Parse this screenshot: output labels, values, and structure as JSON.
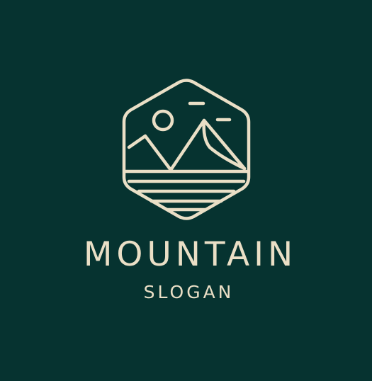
{
  "logo": {
    "title": "MOUNTAIN",
    "slogan": "SLOGAN",
    "icon": "mountain-emblem-icon"
  },
  "colors": {
    "background": "#063330",
    "line": "#EADFC6"
  }
}
